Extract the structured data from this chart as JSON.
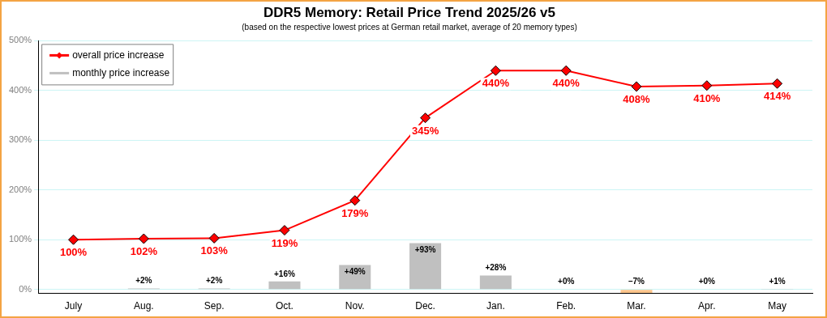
{
  "chart_data": {
    "type": "line",
    "title": "DDR5 Memory: Retail Price Trend 2025/26 v5",
    "subtitle": "(based on the respective lowest prices at German retail market, average of 20 memory types)",
    "categories": [
      "July",
      "Aug.",
      "Sep.",
      "Oct.",
      "Nov.",
      "Dec.",
      "Jan.",
      "Feb.",
      "Mar.",
      "Apr.",
      "May"
    ],
    "series": [
      {
        "name": "overall price increase",
        "color": "#ff0000",
        "values": [
          100,
          102,
          103,
          119,
          179,
          345,
          440,
          440,
          408,
          410,
          414
        ],
        "value_labels": [
          "100%",
          "102%",
          "103%",
          "119%",
          "179%",
          "345%",
          "440%",
          "440%",
          "408%",
          "410%",
          "414%"
        ]
      },
      {
        "name": "monthly price increase",
        "type": "bar",
        "color": "#c0c0c0",
        "colors": [
          "#c0c0c0",
          "#c0c0c0",
          "#c0c0c0",
          "#c0c0c0",
          "#c0c0c0",
          "#c0c0c0",
          "#c0c0c0",
          "#c0c0c0",
          "#fbc58c",
          "#c0c0c0",
          "#c0c0c0"
        ],
        "values": [
          null,
          2,
          2,
          16,
          49,
          93,
          28,
          0,
          -7,
          0,
          1
        ],
        "value_labels": [
          null,
          "+2%",
          "+2%",
          "+16%",
          "+49%",
          "+93%",
          "+28%",
          "+0%",
          "–7%",
          "+0%",
          "+1%"
        ]
      }
    ],
    "ylim": [
      -8,
      500
    ],
    "yticks": [
      {
        "value": 0,
        "label": "0%"
      },
      {
        "value": 100,
        "label": "100%"
      },
      {
        "value": 200,
        "label": "200%"
      },
      {
        "value": 300,
        "label": "300%"
      },
      {
        "value": 400,
        "label": "400%"
      },
      {
        "value": 500,
        "label": "500%"
      }
    ],
    "grid": "y",
    "legend": "top left",
    "marker": "diamond",
    "line_style": "solid"
  }
}
